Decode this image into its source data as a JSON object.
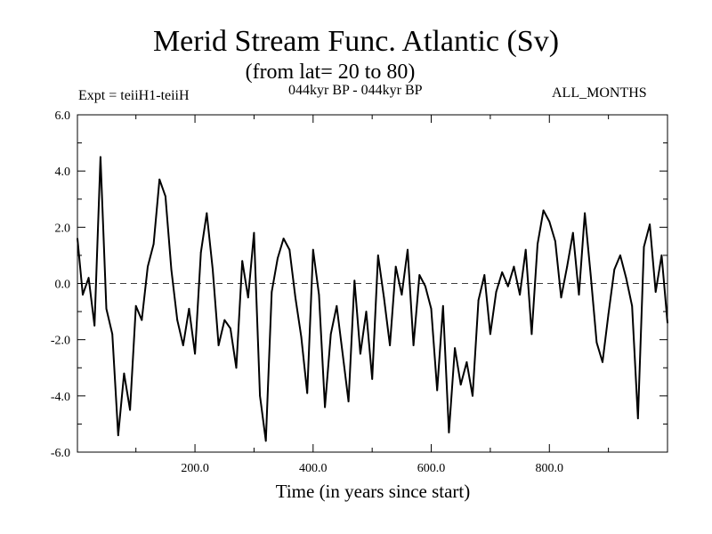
{
  "chart_data": {
    "type": "line",
    "title": "Merid Stream Func. Atlantic (Sv)",
    "subtitle": "(from lat= 20 to 80)",
    "annotations": {
      "left": "Expt = teiiH1-teiiH",
      "center": "044kyr BP - 044kyr BP",
      "right": "ALL_MONTHS"
    },
    "xlabel": "Time (in years since start)",
    "ylabel": "",
    "xlim": [
      1,
      1000
    ],
    "ylim": [
      -6.0,
      6.0
    ],
    "xticks": [
      200,
      400,
      600,
      800
    ],
    "xtick_labels": [
      "200.0",
      "400.0",
      "600.0",
      "800.0"
    ],
    "yticks": [
      -6,
      -4,
      -2,
      0,
      2,
      4,
      6
    ],
    "ytick_labels": [
      "-6.0",
      "-4.0",
      "-2.0",
      "0.0",
      "2.0",
      "4.0",
      "6.0"
    ],
    "zero_line": "dashed",
    "grid": false,
    "series": [
      {
        "x": [
          1,
          10,
          20,
          30,
          40,
          50,
          60,
          70,
          80,
          90,
          100,
          110,
          120,
          130,
          140,
          150,
          160,
          170,
          180,
          190,
          200,
          210,
          220,
          230,
          240,
          250,
          260,
          270,
          280,
          290,
          300,
          310,
          320,
          330,
          340,
          350,
          360,
          370,
          380,
          390,
          400,
          410,
          420,
          430,
          440,
          450,
          460,
          470,
          480,
          490,
          500,
          510,
          520,
          530,
          540,
          550,
          560,
          570,
          580,
          590,
          600,
          610,
          620,
          630,
          640,
          650,
          660,
          670,
          680,
          690,
          700,
          710,
          720,
          730,
          740,
          750,
          760,
          770,
          780,
          790,
          800,
          810,
          820,
          830,
          840,
          850,
          860,
          870,
          880,
          890,
          900,
          910,
          920,
          930,
          940,
          950,
          960,
          970,
          980,
          990,
          1000
        ],
        "y": [
          1.6,
          -0.4,
          0.2,
          -1.5,
          4.5,
          -0.9,
          -1.8,
          -5.4,
          -3.2,
          -4.5,
          -0.8,
          -1.3,
          0.6,
          1.4,
          3.7,
          3.1,
          0.5,
          -1.3,
          -2.2,
          -0.9,
          -2.5,
          1.1,
          2.5,
          0.5,
          -2.2,
          -1.3,
          -1.6,
          -3.0,
          0.8,
          -0.5,
          1.8,
          -4.0,
          -5.6,
          -0.3,
          0.9,
          1.6,
          1.2,
          -0.5,
          -1.9,
          -3.9,
          1.2,
          -0.4,
          -4.4,
          -1.8,
          -0.8,
          -2.5,
          -4.2,
          0.1,
          -2.5,
          -1.0,
          -3.4,
          1.0,
          -0.5,
          -2.2,
          0.6,
          -0.4,
          1.2,
          -2.2,
          0.3,
          -0.1,
          -0.9,
          -3.8,
          -0.8,
          -5.3,
          -2.3,
          -3.6,
          -2.8,
          -4.0,
          -0.6,
          0.3,
          -1.8,
          -0.3,
          0.4,
          -0.1,
          0.6,
          -0.4,
          1.2,
          -1.8,
          1.4,
          2.6,
          2.2,
          1.5,
          -0.5,
          0.6,
          1.8,
          -0.4,
          2.5,
          0.3,
          -2.1,
          -2.8,
          -1.1,
          0.5,
          1.0,
          0.2,
          -0.8,
          -4.8,
          1.3,
          2.1,
          -0.3,
          1.0,
          -1.4
        ]
      }
    ]
  }
}
